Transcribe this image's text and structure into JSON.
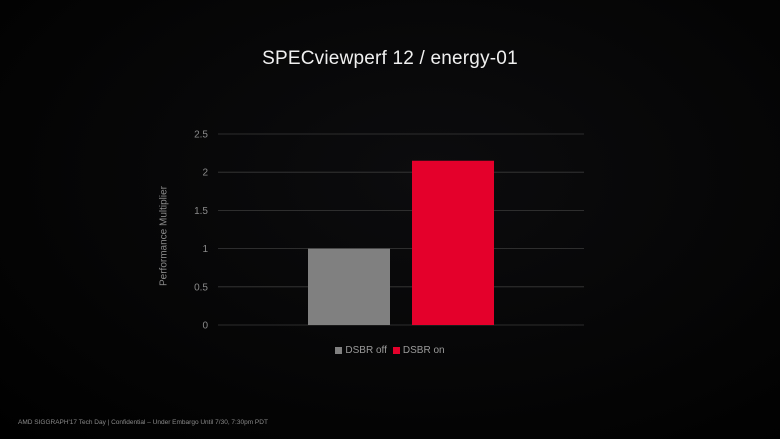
{
  "chart_data": {
    "type": "bar",
    "title": "SPECviewperf 12 / energy-01",
    "ylabel": "Performance Multiplier",
    "xlabel": "",
    "ylim": [
      0,
      2.5
    ],
    "yticks": [
      "2.5",
      "2",
      "1.5",
      "1",
      "0.5",
      "0"
    ],
    "grid": true,
    "legend_position": "bottom",
    "series": [
      {
        "name": "DSBR off",
        "values": [
          1.0
        ],
        "color": "#808080"
      },
      {
        "name": "DSBR on",
        "values": [
          2.15
        ],
        "color": "#e4002b"
      }
    ]
  },
  "footer": {
    "text": "AMD SIGGRAPH'17 Tech Day | Confidential – Under Embargo Until 7/30, 7:30pm PDT"
  }
}
